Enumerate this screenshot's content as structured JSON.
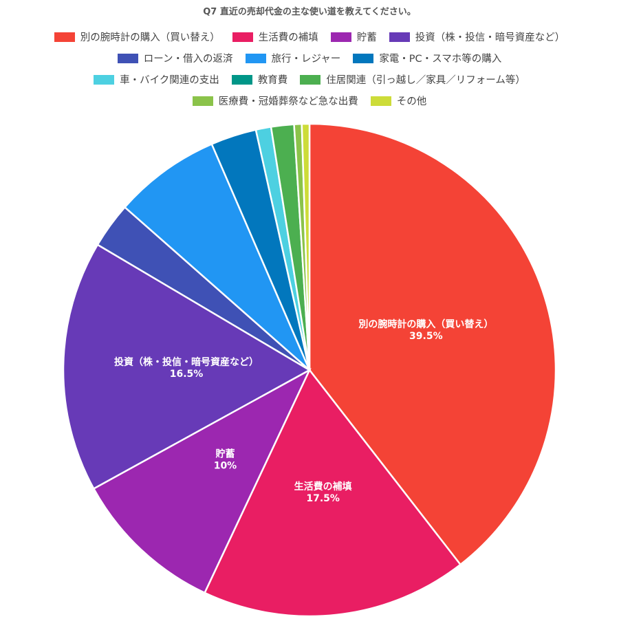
{
  "chart_data": {
    "type": "pie",
    "title": "Q7 直近の売却代金の主な使い道を教えてください。",
    "legend_position": "top",
    "slices": [
      {
        "label": "別の腕時計の購入（買い替え）",
        "value": 39.5,
        "value_label": "39.5%",
        "color": "#F44336"
      },
      {
        "label": "生活費の補填",
        "value": 17.5,
        "value_label": "17.5%",
        "color": "#E91E63"
      },
      {
        "label": "貯蓄",
        "value": 10,
        "value_label": "10%",
        "color": "#9C27B0"
      },
      {
        "label": "投資（株・投信・暗号資産など）",
        "value": 16.5,
        "value_label": "16.5%",
        "color": "#673AB7"
      },
      {
        "label": "ローン・借入の返済",
        "value": 3,
        "value_label": "",
        "color": "#3F51B5"
      },
      {
        "label": "旅行・レジャー",
        "value": 7,
        "value_label": "",
        "color": "#2196F3"
      },
      {
        "label": "家電・PC・スマホ等の購入",
        "value": 3,
        "value_label": "",
        "color": "#0277BD"
      },
      {
        "label": "車・バイク関連の支出",
        "value": 1,
        "value_label": "",
        "color": "#4DD0E1"
      },
      {
        "label": "教育費",
        "value": 0,
        "value_label": "",
        "color": "#009688"
      },
      {
        "label": "住居関連（引っ越し／家具／リフォーム等）",
        "value": 1.5,
        "value_label": "",
        "color": "#4CAF50"
      },
      {
        "label": "医療費・冠婚葬祭など急な出費",
        "value": 0.5,
        "value_label": "",
        "color": "#8BC34A"
      },
      {
        "label": "その他",
        "value": 0.5,
        "value_label": "",
        "color": "#CDDC39"
      }
    ],
    "legend_rows": [
      [
        0,
        1,
        2,
        3
      ],
      [
        4,
        5,
        6
      ],
      [
        7,
        8,
        9
      ],
      [
        10,
        11
      ]
    ]
  }
}
